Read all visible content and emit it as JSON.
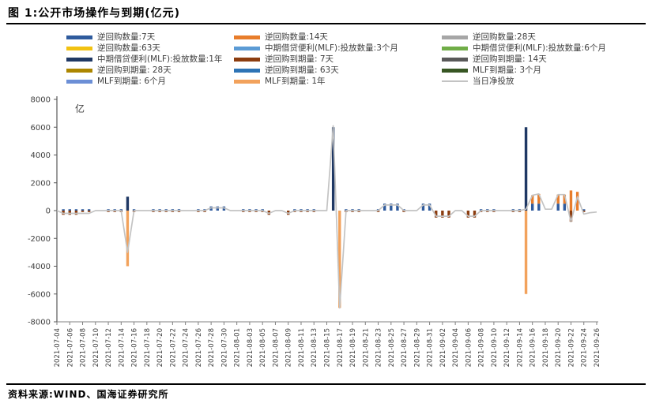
{
  "title": "图 1:公开市场操作与到期(亿元)",
  "source": "资料来源:WIND、国海证券研究所",
  "chart_data": {
    "type": "bar",
    "subtype": "daily stacked bars with net-injection line",
    "unit_label": "亿",
    "y_axis": {
      "min": -8000,
      "max": 8000,
      "step": 2000,
      "ticks": [
        8000,
        6000,
        4000,
        2000,
        0,
        -2000,
        -4000,
        -6000,
        -8000
      ]
    },
    "x_axis": {
      "start": "2021-07-04",
      "end": "2021-09-26",
      "label_every_days": 2,
      "tick_labels": [
        "2021-07-04",
        "2021-07-06",
        "2021-07-08",
        "2021-07-10",
        "2021-07-12",
        "2021-07-14",
        "2021-07-16",
        "2021-07-18",
        "2021-07-20",
        "2021-07-22",
        "2021-07-24",
        "2021-07-26",
        "2021-07-28",
        "2021-07-30",
        "2021-08-01",
        "2021-08-03",
        "2021-08-05",
        "2021-08-07",
        "2021-08-09",
        "2021-08-11",
        "2021-08-13",
        "2021-08-15",
        "2021-08-17",
        "2021-08-19",
        "2021-08-21",
        "2021-08-23",
        "2021-08-25",
        "2021-08-27",
        "2021-08-29",
        "2021-08-31",
        "2021-09-02",
        "2021-09-04",
        "2021-09-06",
        "2021-09-08",
        "2021-09-10",
        "2021-09-12",
        "2021-09-14",
        "2021-09-16",
        "2021-09-18",
        "2021-09-20",
        "2021-09-22",
        "2021-09-24",
        "2021-09-26"
      ]
    },
    "grid": false,
    "legend_position": "top, 3 columns x 5 rows",
    "series": [
      {
        "id": "rr_qty_7d",
        "label": "逆回购数量:7天",
        "color": "#2F5B9D",
        "role": "bar"
      },
      {
        "id": "rr_qty_14d",
        "label": "逆回购数量:14天",
        "color": "#E87D2B",
        "role": "bar"
      },
      {
        "id": "rr_qty_28d",
        "label": "逆回购数量:28天",
        "color": "#A6A6A6",
        "role": "bar"
      },
      {
        "id": "rr_qty_63d",
        "label": "逆回购数量:63天",
        "color": "#F2C211",
        "role": "bar"
      },
      {
        "id": "mlf_inj_3m",
        "label": "中期借贷便利(MLF):投放数量:3个月",
        "color": "#5B9BD5",
        "role": "bar"
      },
      {
        "id": "mlf_inj_6m",
        "label": "中期借贷便利(MLF):投放数量:6个月",
        "color": "#70AD47",
        "role": "bar"
      },
      {
        "id": "mlf_inj_1y",
        "label": "中期借贷便利(MLF):投放数量:1年",
        "color": "#1F3864",
        "role": "bar"
      },
      {
        "id": "rr_mat_7d",
        "label": "逆回购到期量: 7天",
        "color": "#8C3D10",
        "role": "bar"
      },
      {
        "id": "rr_mat_14d",
        "label": "逆回购到期量: 14天",
        "color": "#595959",
        "role": "bar"
      },
      {
        "id": "rr_mat_28d",
        "label": "逆回购到期量: 28天",
        "color": "#AC8600",
        "role": "bar"
      },
      {
        "id": "rr_mat_63d",
        "label": "逆回购到期量: 63天",
        "color": "#2E74B5",
        "role": "bar"
      },
      {
        "id": "mlf_mat_3m",
        "label": "MLF到期量: 3个月",
        "color": "#375623",
        "role": "bar"
      },
      {
        "id": "mlf_mat_6m",
        "label": "MLF到期量: 6个月",
        "color": "#6C8FD6",
        "role": "bar"
      },
      {
        "id": "mlf_mat_1y",
        "label": "MLF到期量: 1年",
        "color": "#F2A25C",
        "role": "bar"
      },
      {
        "id": "net",
        "label": "当日净投放",
        "color": "#C3C3C3",
        "role": "line"
      }
    ],
    "bars": [
      [
        "2021-07-05",
        "rr_qty_7d",
        100
      ],
      [
        "2021-07-05",
        "rr_mat_7d",
        -300
      ],
      [
        "2021-07-06",
        "rr_qty_7d",
        100
      ],
      [
        "2021-07-06",
        "rr_mat_7d",
        -300
      ],
      [
        "2021-07-07",
        "rr_qty_7d",
        100
      ],
      [
        "2021-07-07",
        "rr_mat_7d",
        -300
      ],
      [
        "2021-07-15",
        "mlf_inj_1y",
        1000
      ],
      [
        "2021-07-15",
        "mlf_mat_1y",
        -4000
      ],
      [
        "2021-07-28",
        "rr_qty_7d",
        300
      ],
      [
        "2021-07-29",
        "rr_qty_7d",
        300
      ],
      [
        "2021-07-30",
        "rr_qty_7d",
        300
      ],
      [
        "2021-08-06",
        "rr_mat_7d",
        -300
      ],
      [
        "2021-08-09",
        "rr_mat_7d",
        -300
      ],
      [
        "2021-08-16",
        "mlf_inj_1y",
        6000
      ],
      [
        "2021-08-17",
        "mlf_mat_1y",
        -7000
      ],
      [
        "2021-08-24",
        "rr_qty_7d",
        500
      ],
      [
        "2021-08-25",
        "rr_qty_7d",
        500
      ],
      [
        "2021-08-26",
        "rr_qty_7d",
        500
      ],
      [
        "2021-08-30",
        "rr_qty_7d",
        500
      ],
      [
        "2021-08-31",
        "rr_qty_7d",
        500
      ],
      [
        "2021-09-01",
        "rr_mat_7d",
        -500
      ],
      [
        "2021-09-02",
        "rr_mat_7d",
        -500
      ],
      [
        "2021-09-03",
        "rr_mat_7d",
        -500
      ],
      [
        "2021-09-06",
        "rr_mat_7d",
        -500
      ],
      [
        "2021-09-07",
        "rr_mat_7d",
        -500
      ],
      [
        "2021-09-15",
        "mlf_inj_1y",
        6000
      ],
      [
        "2021-09-15",
        "mlf_mat_1y",
        -6000
      ],
      [
        "2021-09-16",
        "rr_qty_7d",
        500
      ],
      [
        "2021-09-16",
        "rr_qty_14d",
        600
      ],
      [
        "2021-09-17",
        "rr_qty_7d",
        500
      ],
      [
        "2021-09-17",
        "rr_qty_14d",
        700
      ],
      [
        "2021-09-20",
        "rr_qty_7d",
        500
      ],
      [
        "2021-09-20",
        "rr_qty_14d",
        650
      ],
      [
        "2021-09-21",
        "rr_qty_7d",
        500
      ],
      [
        "2021-09-21",
        "rr_qty_14d",
        650
      ],
      [
        "2021-09-22",
        "rr_qty_14d",
        1450
      ],
      [
        "2021-09-22",
        "rr_mat_7d",
        -800
      ],
      [
        "2021-09-23",
        "rr_qty_14d",
        1350
      ]
    ],
    "net_line_nonzero": [
      [
        "2021-07-05",
        -200
      ],
      [
        "2021-07-06",
        -200
      ],
      [
        "2021-07-07",
        -200
      ],
      [
        "2021-07-08",
        -200
      ],
      [
        "2021-07-09",
        -200
      ],
      [
        "2021-07-15",
        -3000
      ],
      [
        "2021-07-28",
        200
      ],
      [
        "2021-07-29",
        200
      ],
      [
        "2021-07-30",
        200
      ],
      [
        "2021-08-06",
        -200
      ],
      [
        "2021-08-09",
        -200
      ],
      [
        "2021-08-16",
        6100
      ],
      [
        "2021-08-17",
        -7000
      ],
      [
        "2021-08-24",
        400
      ],
      [
        "2021-08-25",
        400
      ],
      [
        "2021-08-26",
        400
      ],
      [
        "2021-08-30",
        400
      ],
      [
        "2021-08-31",
        400
      ],
      [
        "2021-09-01",
        -400
      ],
      [
        "2021-09-02",
        -400
      ],
      [
        "2021-09-03",
        -400
      ],
      [
        "2021-09-06",
        -400
      ],
      [
        "2021-09-07",
        -400
      ],
      [
        "2021-09-15",
        100
      ],
      [
        "2021-09-16",
        1100
      ],
      [
        "2021-09-17",
        1200
      ],
      [
        "2021-09-18",
        100
      ],
      [
        "2021-09-19",
        100
      ],
      [
        "2021-09-20",
        1150
      ],
      [
        "2021-09-21",
        1150
      ],
      [
        "2021-09-22",
        -800
      ],
      [
        "2021-09-23",
        1000
      ],
      [
        "2021-09-24",
        -250
      ],
      [
        "2021-09-25",
        -150
      ],
      [
        "2021-09-26",
        -100
      ]
    ],
    "baseline_daily_ops": {
      "note": "tiny marks on the zero line on ordinary weekdays",
      "inject_series": "rr_qty_7d",
      "inject_value": 100,
      "mature_series": "rr_mat_7d",
      "mature_value": -100
    }
  }
}
